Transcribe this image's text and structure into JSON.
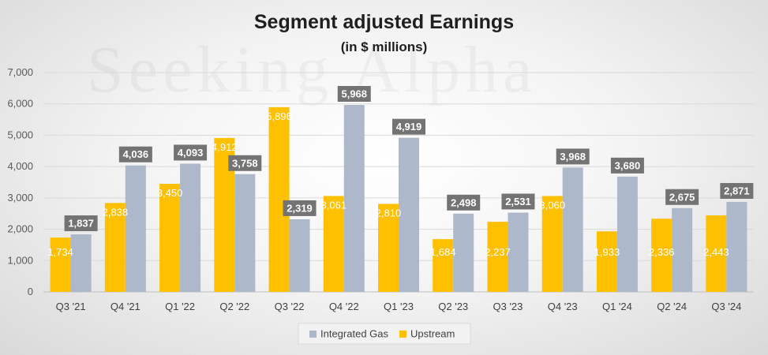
{
  "title": "Segment adjusted Earnings",
  "subtitle": "(in $ millions)",
  "watermark": "Seeking Alpha",
  "colors": {
    "upstream": "#FFC000",
    "integrated_gas": "#ADB9CA",
    "ig_label_bg": "#737373",
    "grid": "#D9D9D9"
  },
  "chart_data": {
    "type": "bar",
    "title": "Segment adjusted Earnings",
    "subtitle": "(in $ millions)",
    "categories": [
      "Q3 '21",
      "Q4 '21",
      "Q1 '22",
      "Q2 '22",
      "Q3 '22",
      "Q4 '22",
      "Q1 '23",
      "Q2 '23",
      "Q3 '23",
      "Q4 '23",
      "Q1 '24",
      "Q2 '24",
      "Q3 '24"
    ],
    "series": [
      {
        "name": "Upstream",
        "values": [
          1734,
          2838,
          3450,
          4912,
          5896,
          3061,
          2810,
          1684,
          2237,
          3060,
          1933,
          2336,
          2443
        ]
      },
      {
        "name": "Integrated Gas",
        "values": [
          1837,
          4036,
          4093,
          3758,
          2319,
          5968,
          4919,
          2498,
          2531,
          3968,
          3680,
          2675,
          2871
        ]
      }
    ],
    "ylim": [
      0,
      7000
    ],
    "yticks": [
      0,
      1000,
      2000,
      3000,
      4000,
      5000,
      6000,
      7000
    ],
    "ytick_labels": [
      "0",
      "1,000",
      "2,000",
      "3,000",
      "4,000",
      "5,000",
      "6,000",
      "7,000"
    ],
    "grid": true,
    "legend": {
      "placement": "bottom-center",
      "entries": [
        "Integrated Gas",
        "Upstream"
      ]
    }
  }
}
